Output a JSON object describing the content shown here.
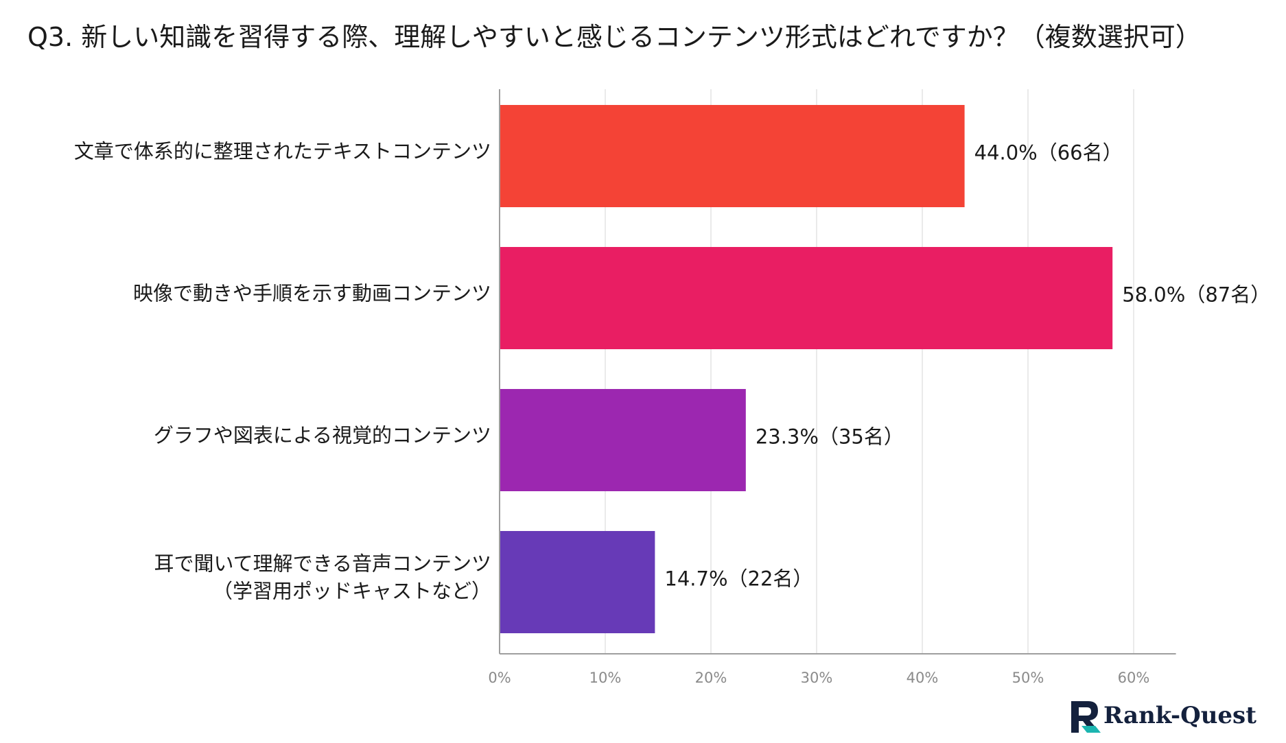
{
  "chart_data": {
    "type": "bar",
    "orientation": "horizontal",
    "title": "Q3. 新しい知識を習得する際、理解しやすいと感じるコンテンツ形式はどれですか？（複数選択可）",
    "categories": [
      [
        "文章で体系的に整理されたテキストコンテンツ"
      ],
      [
        "映像で動きや手順を示す動画コンテンツ"
      ],
      [
        "グラフや図表による視覚的コンテンツ"
      ],
      [
        "耳で聞いて理解できる音声コンテンツ",
        "（学習用ポッドキャストなど）"
      ]
    ],
    "values": [
      44.0,
      58.0,
      23.3,
      14.7
    ],
    "data_labels": [
      "44.0%（66名）",
      "58.0%（87名）",
      "23.3%（35名）",
      "14.7%（22名）"
    ],
    "colors": [
      "#f44336",
      "#e91e63",
      "#9c27b0",
      "#673ab7"
    ],
    "xlim": [
      0,
      64
    ],
    "x_ticks": [
      0,
      10,
      20,
      30,
      40,
      50,
      60
    ],
    "x_tick_labels": [
      "0%",
      "10%",
      "20%",
      "30%",
      "40%",
      "50%",
      "60%"
    ],
    "grid": true,
    "xlabel": "",
    "ylabel": ""
  },
  "logo": {
    "text": "Rank-Quest",
    "icon": "rank-quest-logo-icon",
    "color": "#14213d",
    "accent": "#1cb5b0"
  }
}
